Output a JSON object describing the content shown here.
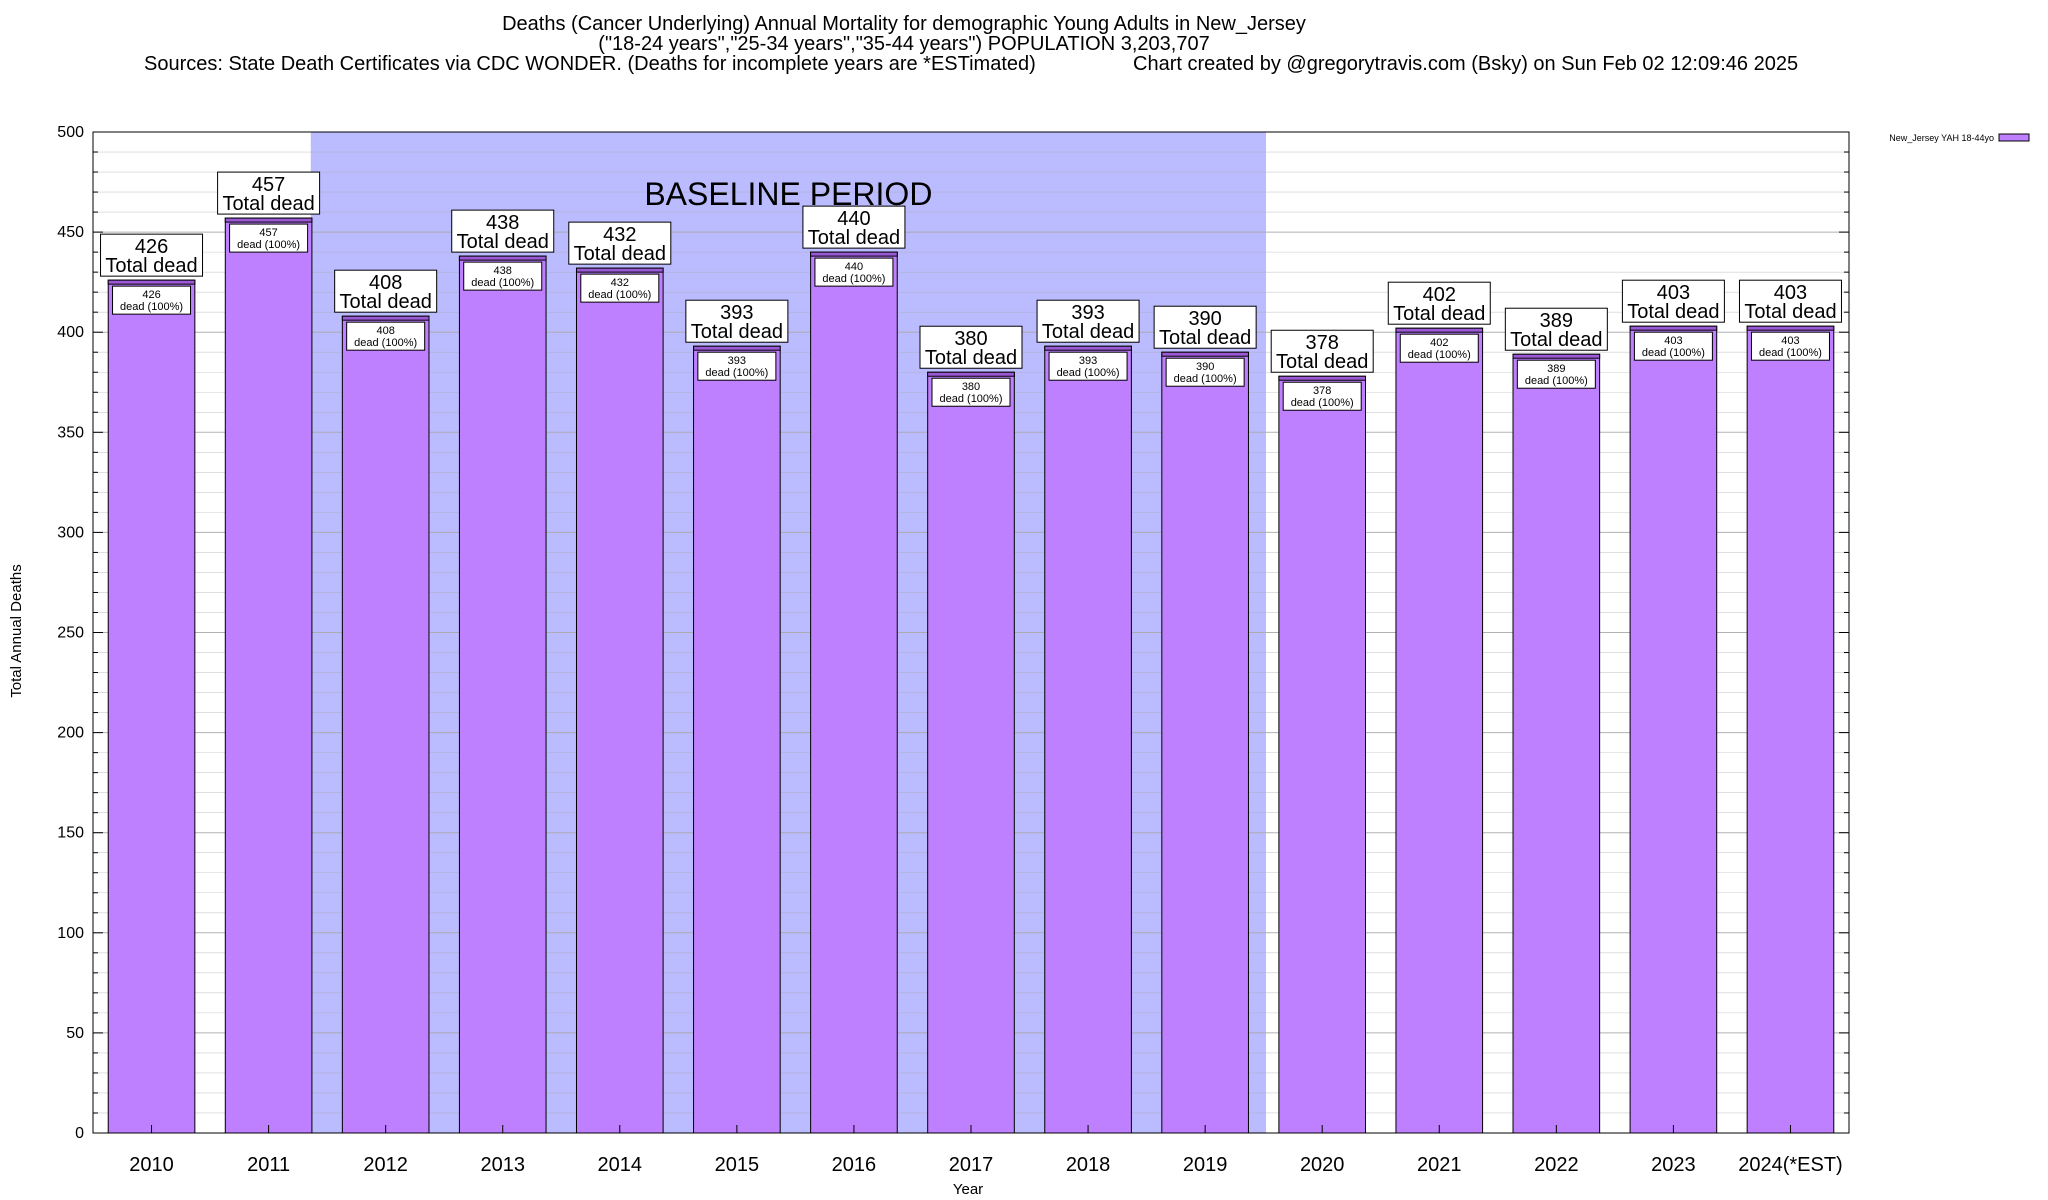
{
  "chart_data": {
    "type": "bar",
    "title": "Deaths (Cancer Underlying) Annual Mortality for demographic Young Adults in New_Jersey",
    "subtitle": "(\"18-24 years\",\"25-34 years\",\"35-44 years\") POPULATION 3,203,707",
    "sources": "Sources: State Death Certificates via CDC WONDER. (Deaths for incomplete years are *ESTimated)",
    "credit": "Chart created by @gregorytravis.com (Bsky) on Sun Feb 02 12:09:46 2025",
    "xlabel": "Year",
    "ylabel": "Total Annual Deaths",
    "ylim": [
      0,
      500
    ],
    "yticks": [
      0,
      50,
      100,
      150,
      200,
      250,
      300,
      350,
      400,
      450,
      500
    ],
    "categories": [
      "2010",
      "2011",
      "2012",
      "2013",
      "2014",
      "2015",
      "2016",
      "2017",
      "2018",
      "2019",
      "2020",
      "2021",
      "2022",
      "2023",
      "2024(*EST)"
    ],
    "series": [
      {
        "name": "New_Jersey YAH 18-44yo",
        "values": [
          426,
          457,
          408,
          438,
          432,
          393,
          440,
          380,
          393,
          390,
          378,
          402,
          389,
          403,
          403
        ]
      }
    ],
    "total_label_suffix": "Total dead",
    "inner_label_suffix": "dead (100%)",
    "baseline_label": "BASELINE PERIOD",
    "baseline_range": [
      "2012",
      "2019"
    ],
    "grid": true,
    "legend_position": "top-right",
    "colors": {
      "bar_fill": "#bf80ff",
      "bar_top_band": "#9b59d6",
      "baseline_shade": "#bbbbff",
      "grid": "#aaaaaa"
    }
  }
}
